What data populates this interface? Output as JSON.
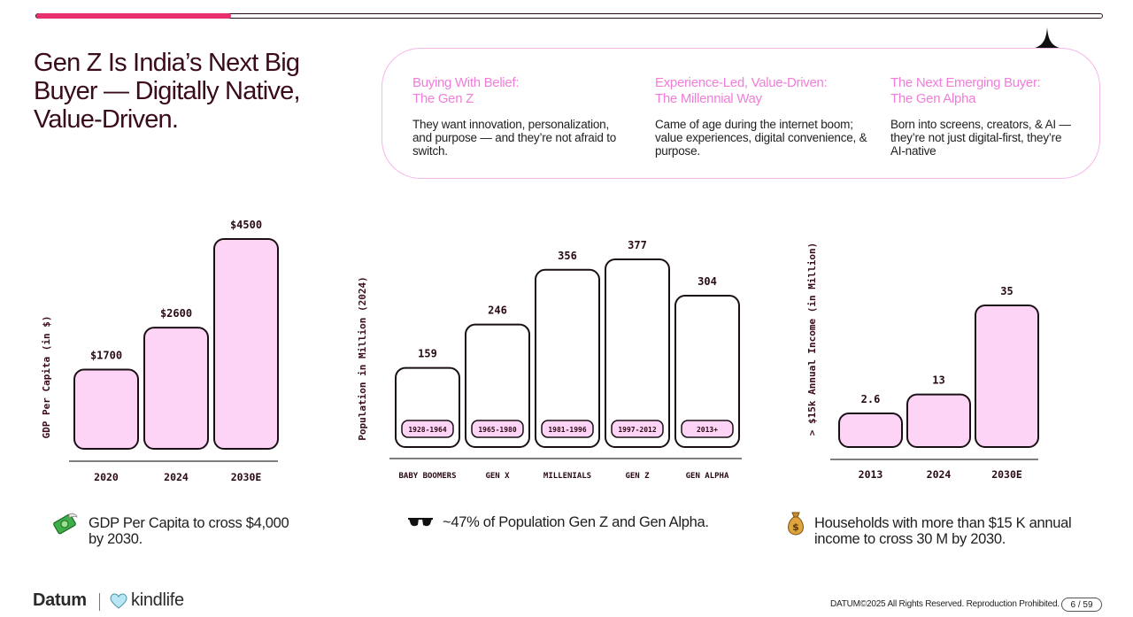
{
  "progress": {
    "fraction": 0.183,
    "accent": "#e8306e"
  },
  "title": "Gen Z Is India’s Next Big Buyer — Digitally Native, Value-Driven.",
  "info_cards": [
    {
      "heading_line1": "Buying With Belief:",
      "heading_line2": "The Gen Z",
      "body": "They want innovation, personalization, and purpose — and they’re not afraid to switch."
    },
    {
      "heading_line1": "Experience-Led, Value-Driven:",
      "heading_line2": "The Millennial Way",
      "body": "Came of age during the internet boom; value experiences, digital convenience, & purpose."
    },
    {
      "heading_line1": "The Next Emerging Buyer:",
      "heading_line2": "The Gen Alpha",
      "body": "Born into screens, creators, & AI — they’re not just digital-first, they’re AI-native"
    }
  ],
  "colors": {
    "bar_pink": "#fdd4f6",
    "bar_white": "#ffffff",
    "stroke": "#1a1014",
    "heading_pink": "#f07ed8",
    "text_dark": "#3a0c1a"
  },
  "chart_data": [
    {
      "type": "bar",
      "title": "",
      "xlabel": "",
      "ylabel": "GDP Per Capita (in $)",
      "categories": [
        "2020",
        "2024",
        "2030E"
      ],
      "values": [
        1700,
        2600,
        4500
      ],
      "value_labels": [
        "$1700",
        "$2600",
        "$4500"
      ],
      "ylim": [
        0,
        4500
      ],
      "grid": false
    },
    {
      "type": "bar",
      "title": "",
      "xlabel": "",
      "ylabel": "Population in Million (2024)",
      "categories": [
        "BABY BOOMERS",
        "GEN X",
        "MILLENIALS",
        "GEN Z",
        "GEN ALPHA"
      ],
      "values": [
        159,
        246,
        356,
        377,
        304
      ],
      "value_labels": [
        "159",
        "246",
        "356",
        "377",
        "304"
      ],
      "year_ranges": [
        "1928-1964",
        "1965-1980",
        "1981-1996",
        "1997-2012",
        "2013+"
      ],
      "ylim": [
        0,
        377
      ],
      "grid": false
    },
    {
      "type": "bar",
      "title": "",
      "xlabel": "",
      "ylabel": "> $15k Annual Income (in Million)",
      "categories": [
        "2013",
        "2024",
        "2030E"
      ],
      "values": [
        2.6,
        13,
        35
      ],
      "value_labels": [
        "2.6",
        "13",
        "35"
      ],
      "ylim": [
        0,
        35
      ],
      "grid": false
    }
  ],
  "footnotes": [
    {
      "icon": "money-with-wings-icon",
      "text": "GDP Per Capita to cross $4,000 by 2030."
    },
    {
      "icon": "sunglasses-icon",
      "text": "~47% of Population Gen Z and Gen Alpha."
    },
    {
      "icon": "money-bag-icon",
      "text": "Households with more than $15 K annual income to cross 30 M by 2030."
    }
  ],
  "footer": {
    "brand": "Datum",
    "partner": "kindlife",
    "copyright": "DATUM©2025 All Rights Reserved. Reproduction Prohibited.",
    "page": "6 / 59"
  }
}
